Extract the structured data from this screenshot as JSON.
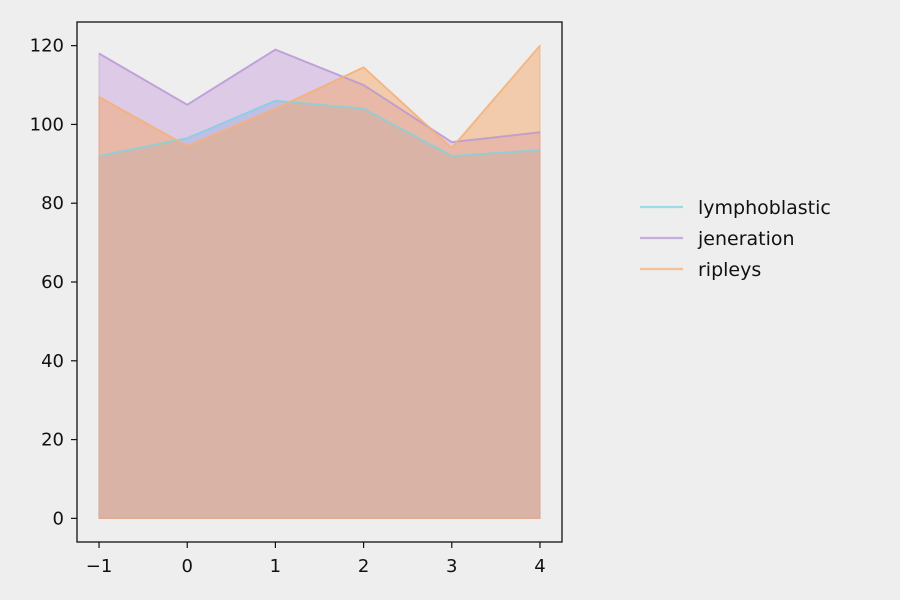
{
  "chart_data": {
    "type": "area",
    "title": "",
    "xlabel": "",
    "ylabel": "",
    "x": [
      -1,
      0,
      1,
      2,
      3,
      4
    ],
    "x_tick_labels": [
      "−1",
      "0",
      "1",
      "2",
      "3",
      "4"
    ],
    "xlim": [
      -1.25,
      4.25
    ],
    "y_ticks": [
      0,
      20,
      40,
      60,
      80,
      100,
      120
    ],
    "y_tick_labels": [
      "0",
      "20",
      "40",
      "60",
      "80",
      "100",
      "120"
    ],
    "ylim": [
      -6,
      126
    ],
    "grid": false,
    "legend_position": "right, outside plot",
    "series": [
      {
        "name": "lymphoblastic",
        "values": [
          92,
          96.5,
          106,
          104,
          92,
          93.5
        ],
        "color": "#7fd6e0",
        "fill_color": "#7fbfe6"
      },
      {
        "name": "jeneration",
        "values": [
          118,
          105,
          119,
          110,
          95.5,
          98
        ],
        "color": "#b797d6",
        "fill_color": "#c9a6de"
      },
      {
        "name": "ripleys",
        "values": [
          107,
          94.5,
          104,
          114.5,
          94,
          120
        ],
        "color": "#f5b27a",
        "fill_color": "#f4a86a"
      }
    ]
  }
}
